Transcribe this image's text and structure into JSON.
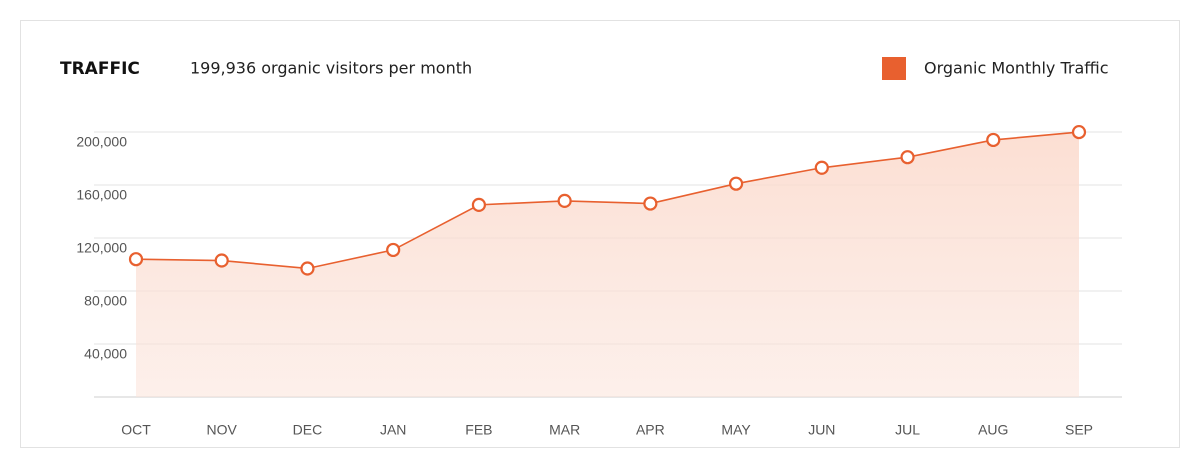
{
  "chart_data": {
    "type": "line",
    "title": "TRAFFIC",
    "subtitle": "199,936 organic visitors per month",
    "categories": [
      "OCT",
      "NOV",
      "DEC",
      "JAN",
      "FEB",
      "MAR",
      "APR",
      "MAY",
      "JUN",
      "JUL",
      "AUG",
      "SEP"
    ],
    "series": [
      {
        "name": "Organic Monthly Traffic",
        "color": "#e8602f",
        "values": [
          104000,
          103000,
          97000,
          111000,
          145000,
          148000,
          146000,
          161000,
          173000,
          181000,
          194000,
          199936
        ]
      }
    ],
    "ylim": [
      0,
      200000
    ],
    "yticks": [
      {
        "value": 40000,
        "label": "40,000"
      },
      {
        "value": 80000,
        "label": "80,000"
      },
      {
        "value": 120000,
        "label": "120,000"
      },
      {
        "value": 160000,
        "label": "160,000"
      },
      {
        "value": 200000,
        "label": "200,000"
      }
    ],
    "grid": true,
    "legend": "top-right"
  }
}
